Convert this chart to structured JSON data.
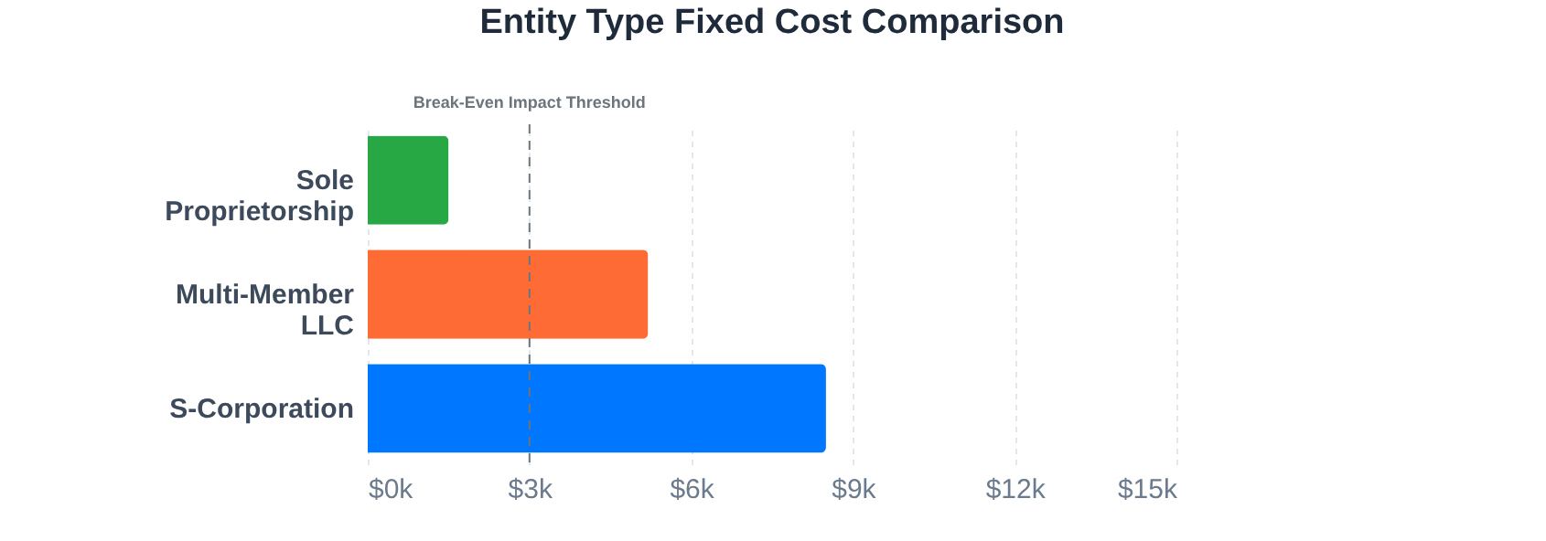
{
  "chart_data": {
    "type": "bar",
    "orientation": "horizontal",
    "title": "Entity Type Fixed Cost Comparison",
    "categories": [
      "Sole Proprietorship",
      "Multi-Member LLC",
      "S-Corporation"
    ],
    "values": [
      1500,
      5200,
      8500
    ],
    "colors": [
      "#28a745",
      "#ff6b35",
      "#0077ff"
    ],
    "xlim": [
      0,
      15000
    ],
    "xticks": [
      {
        "value": 0,
        "label": "$0k"
      },
      {
        "value": 3000,
        "label": "$3k"
      },
      {
        "value": 6000,
        "label": "$6k"
      },
      {
        "value": 9000,
        "label": "$9k"
      },
      {
        "value": 12000,
        "label": "$12k"
      },
      {
        "value": 15000,
        "label": "$15k"
      }
    ],
    "grid": "x",
    "ref_lines": [
      {
        "axis": "x",
        "value": 3000,
        "label": "Break-Even Impact Threshold",
        "color": "#6c757d",
        "line_style": "dashed"
      }
    ]
  }
}
